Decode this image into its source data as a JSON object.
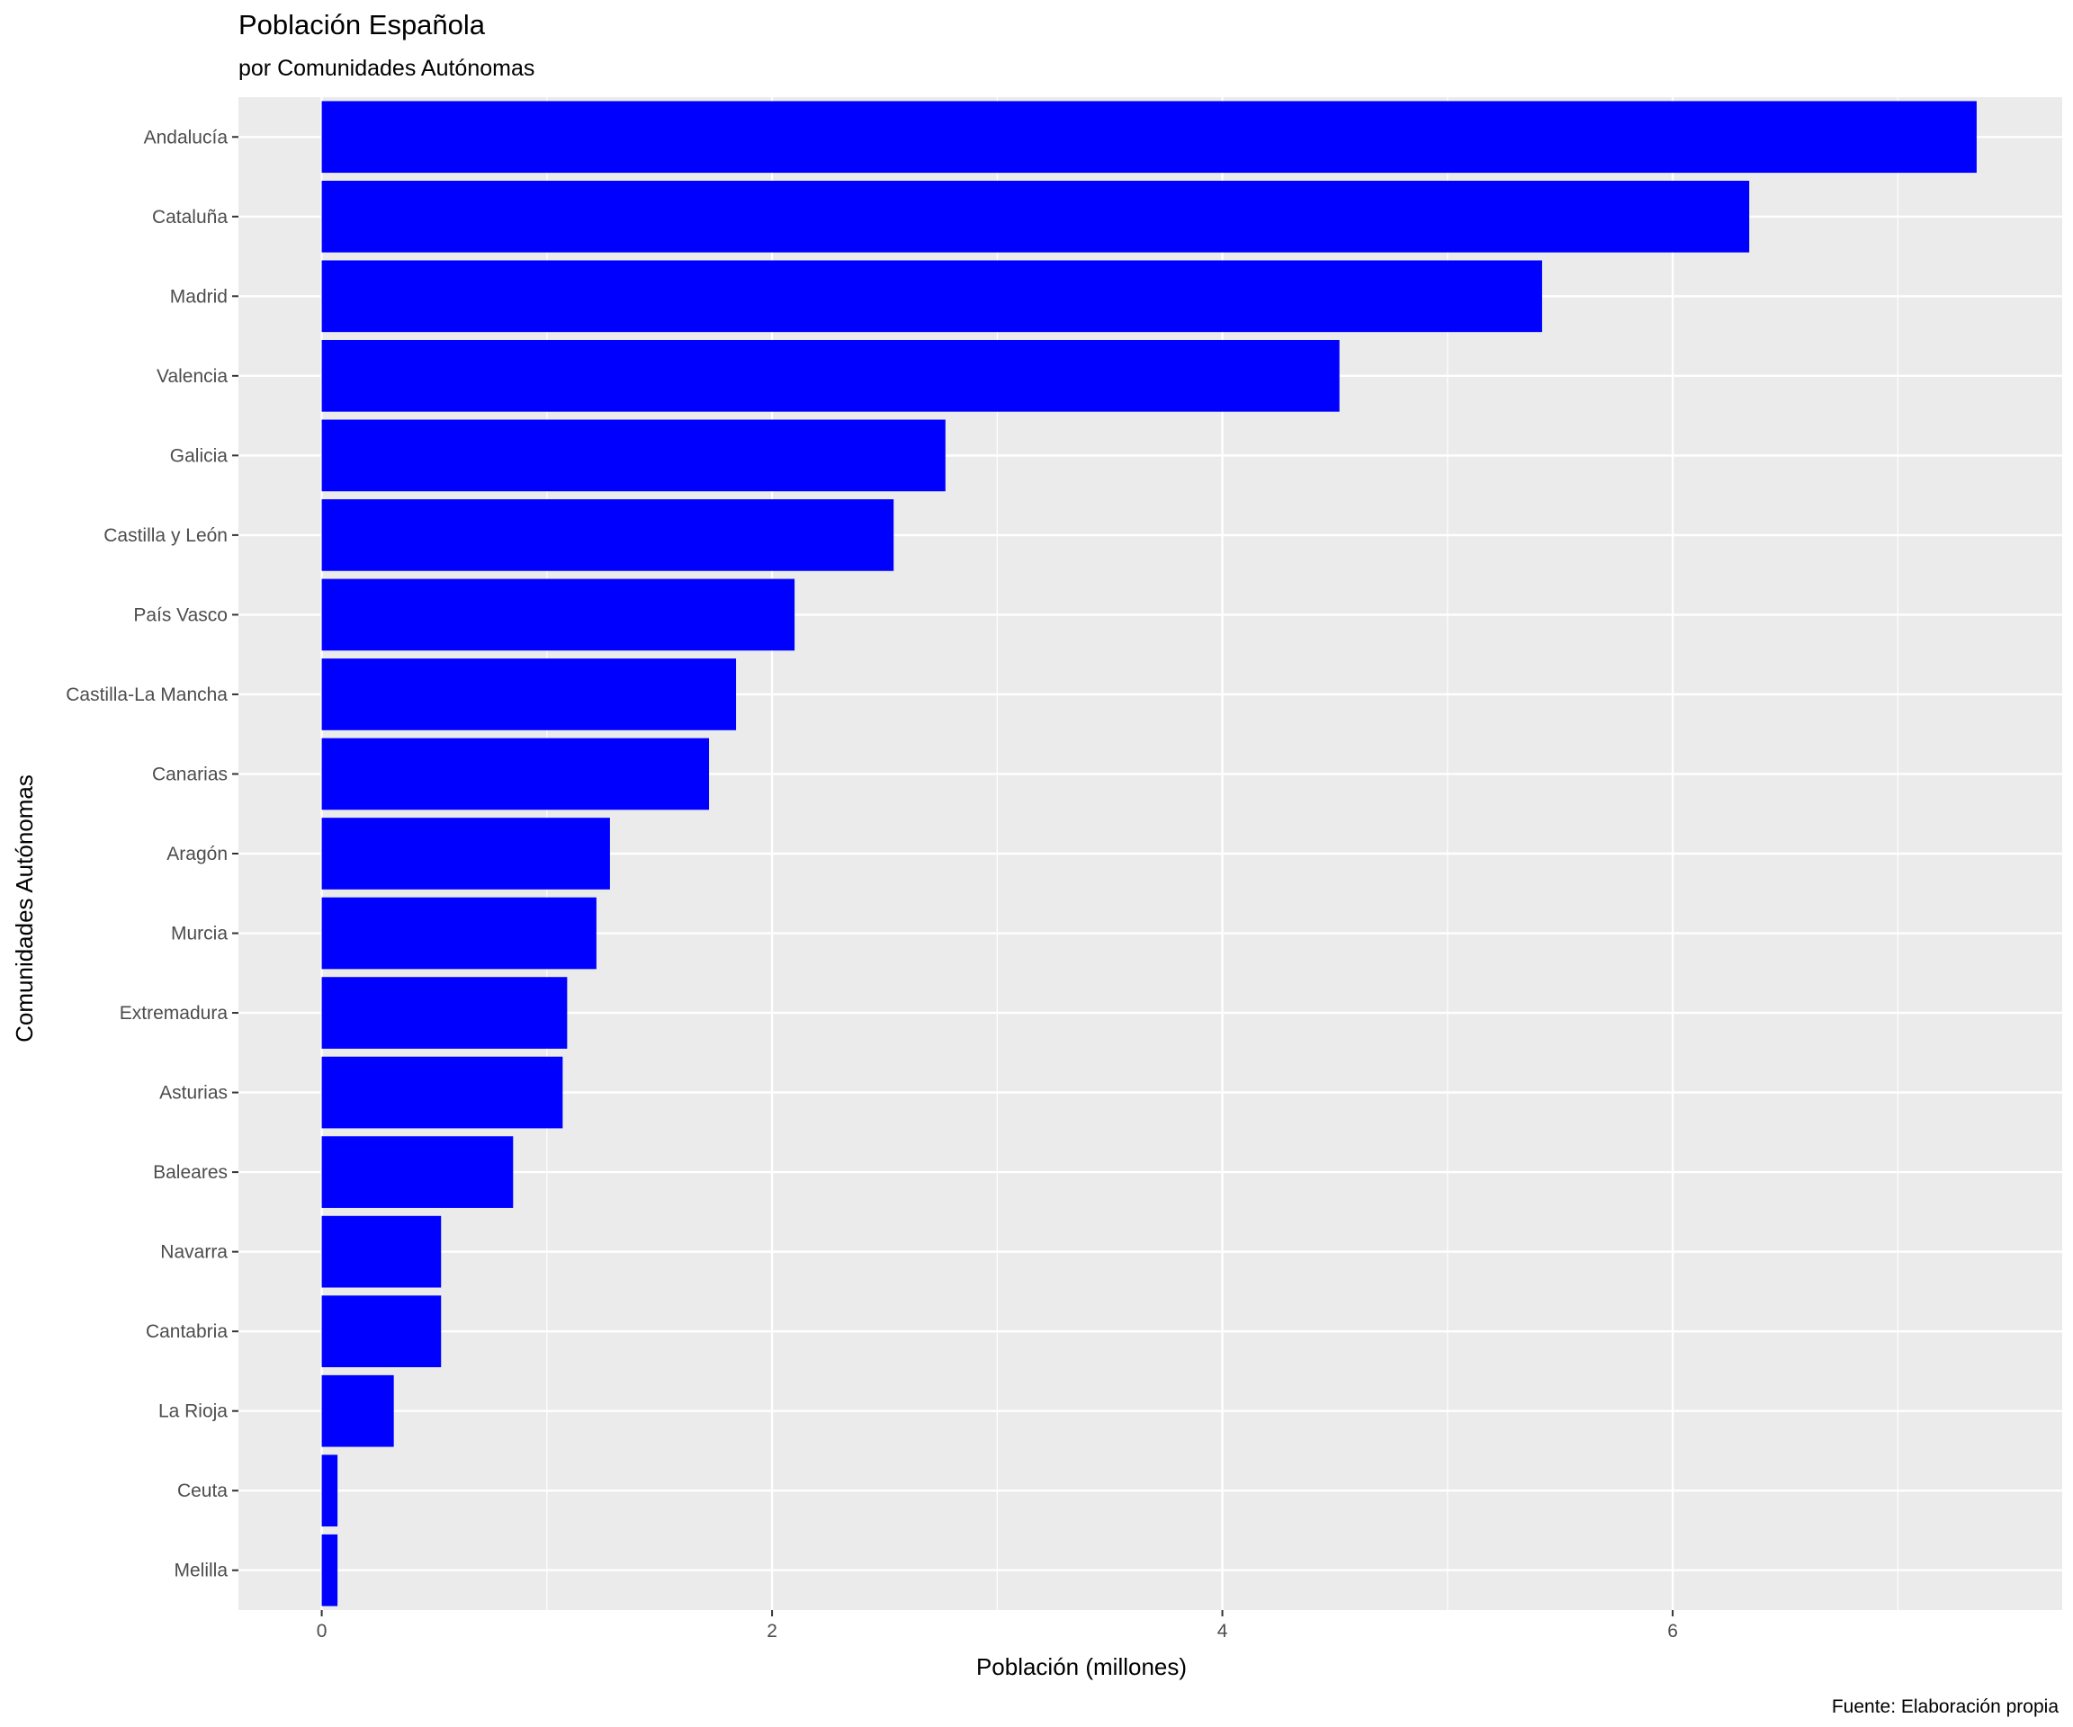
{
  "chart_data": {
    "type": "bar",
    "orientation": "horizontal",
    "title": "Población Española",
    "subtitle": "por Comunidades Autónomas",
    "xlabel": "Población (millones)",
    "ylabel": "Comunidades Autónomas",
    "caption": "Fuente: Elaboración propia",
    "xlim": [
      -0.37,
      7.73
    ],
    "xticks": [
      0,
      2,
      4,
      6
    ],
    "grid": true,
    "bar_color": "#0000ff",
    "panel_color": "#ebebeb",
    "categories": [
      "Andalucía",
      "Cataluña",
      "Madrid",
      "Valencia",
      "Galicia",
      "Castilla y León",
      "País Vasco",
      "Castilla-La Mancha",
      "Canarias",
      "Aragón",
      "Murcia",
      "Extremadura",
      "Asturias",
      "Baleares",
      "Navarra",
      "Cantabria",
      "La Rioja",
      "Ceuta",
      "Melilla"
    ],
    "values": [
      7.35,
      6.34,
      5.42,
      4.52,
      2.77,
      2.54,
      2.1,
      1.84,
      1.72,
      1.28,
      1.22,
      1.09,
      1.07,
      0.85,
      0.53,
      0.53,
      0.32,
      0.07,
      0.07
    ]
  }
}
